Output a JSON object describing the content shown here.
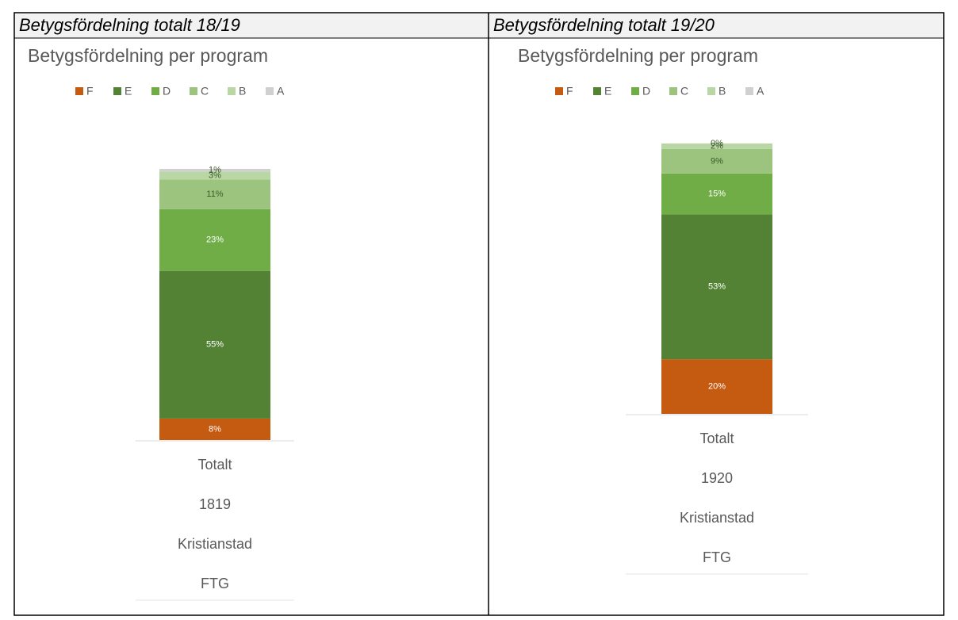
{
  "headers": [
    "Betygsfördelning totalt 18/19",
    "Betygsfördelning totalt 19/20"
  ],
  "chart_data": [
    {
      "type": "stacked_bar",
      "title": "Betygsfördelning per program",
      "categories": [
        [
          "Totalt",
          "1819",
          "Kristianstad",
          "FTG"
        ]
      ],
      "series": [
        {
          "name": "F",
          "color": "#c55a11",
          "values": [
            8
          ],
          "value_labels": [
            "8%"
          ]
        },
        {
          "name": "E",
          "color": "#548235",
          "values": [
            55
          ],
          "value_labels": [
            "55%"
          ]
        },
        {
          "name": "D",
          "color": "#70ad47",
          "values": [
            23
          ],
          "value_labels": [
            "23%"
          ]
        },
        {
          "name": "C",
          "color": "#9cc47e",
          "values": [
            11
          ],
          "value_labels": [
            "11%"
          ]
        },
        {
          "name": "B",
          "color": "#b9d6a5",
          "values": [
            3
          ],
          "value_labels": [
            "3%"
          ]
        },
        {
          "name": "A",
          "color": "#d0d0d0",
          "values": [
            1
          ],
          "value_labels": [
            "1%"
          ]
        }
      ]
    },
    {
      "type": "stacked_bar",
      "title": "Betygsfördelning per program",
      "categories": [
        [
          "Totalt",
          "1920",
          "Kristianstad",
          "FTG"
        ]
      ],
      "series": [
        {
          "name": "F",
          "color": "#c55a11",
          "values": [
            20
          ],
          "value_labels": [
            "20%"
          ]
        },
        {
          "name": "E",
          "color": "#548235",
          "values": [
            53
          ],
          "value_labels": [
            "53%"
          ]
        },
        {
          "name": "D",
          "color": "#70ad47",
          "values": [
            15
          ],
          "value_labels": [
            "15%"
          ]
        },
        {
          "name": "C",
          "color": "#9cc47e",
          "values": [
            9
          ],
          "value_labels": [
            "9%"
          ]
        },
        {
          "name": "B",
          "color": "#b9d6a5",
          "values": [
            2
          ],
          "value_labels": [
            "2%"
          ]
        },
        {
          "name": "A",
          "color": "#d0d0d0",
          "values": [
            0
          ],
          "value_labels": [
            "0%"
          ]
        }
      ]
    }
  ]
}
